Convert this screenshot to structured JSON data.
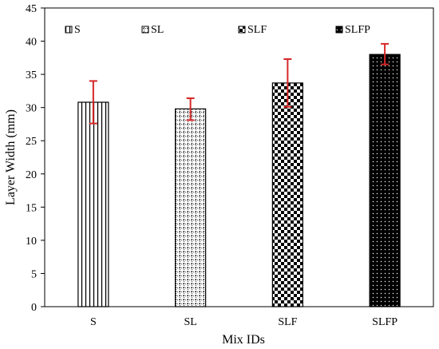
{
  "chart_data": {
    "type": "bar",
    "categories": [
      "S",
      "SL",
      "SLF",
      "SLFP"
    ],
    "values": [
      30.8,
      29.8,
      33.7,
      38.0
    ],
    "error_low": [
      27.6,
      28.1,
      30.1,
      36.5
    ],
    "error_high": [
      34.0,
      31.4,
      37.3,
      39.6
    ],
    "xlabel": "Mix IDs",
    "ylabel": "Layer Width (mm)",
    "ylim": [
      0,
      45
    ],
    "yticks": [
      "0",
      "5",
      "10",
      "15",
      "20",
      "25",
      "30",
      "35",
      "40",
      "45"
    ],
    "grid": false,
    "legend": {
      "position": "top",
      "entries": [
        "S",
        "SL",
        "SLF",
        "SLFP"
      ]
    },
    "patterns": [
      "vertical-lines",
      "grid",
      "checkerboard",
      "dotted-dark"
    ],
    "colors": {
      "bar_stroke": "#000000",
      "error_bar": "#d62728",
      "background": "#ffffff"
    }
  }
}
